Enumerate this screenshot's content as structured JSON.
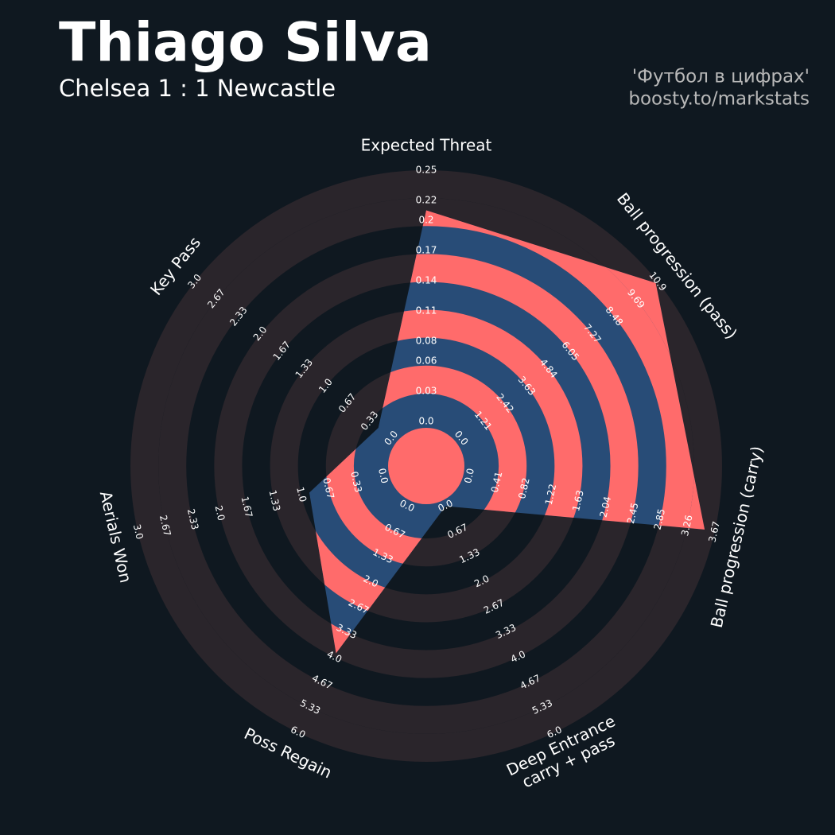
{
  "title": "Thiago Silva",
  "subtitle": "Chelsea 1 : 1 Newcastle",
  "credits": [
    "'Футбол в цифрах'",
    "boosty.to/markstats"
  ],
  "chart_data": {
    "type": "radar",
    "params": [
      "Expected Threat",
      "Ball progression (pass)",
      "Ball progression (carry)",
      "Deep Entrance\ncarry + pass",
      "Poss Regain",
      "Aerials Won",
      "Key Pass"
    ],
    "values": [
      0.21,
      10.8,
      3.52,
      0,
      3.9,
      0.9,
      0.2
    ],
    "color": "#284c77",
    "stripe_color": "#ff6b6b",
    "ring_color": "#2a252b",
    "ranges": [
      {
        "lim": [
          0,
          0.25
        ],
        "ticks": [
          {
            "value": 0,
            "label": "0.0"
          },
          0.03,
          0.06,
          0.08,
          0.11,
          0.14,
          0.17,
          0.2,
          0.22,
          0.25
        ]
      },
      {
        "lim": [
          0,
          10.9
        ],
        "ticks": [
          {
            "value": 0,
            "label": "0.0"
          },
          1.21,
          2.42,
          3.63,
          4.84,
          6.05,
          7.27,
          8.48,
          9.69,
          10.9
        ]
      },
      {
        "lim": [
          0,
          3.67
        ],
        "ticks": [
          {
            "value": 0,
            "label": "0.0"
          },
          0.41,
          0.82,
          1.22,
          1.63,
          2.04,
          2.45,
          2.85,
          3.26,
          3.67
        ]
      },
      {
        "lim": [
          0,
          6
        ],
        "ticks": [
          {
            "value": 0,
            "label": "0.0"
          },
          0.67,
          1.33,
          {
            "value": 2,
            "label": "2.0"
          },
          2.67,
          3.33,
          {
            "value": 4,
            "label": "4.0"
          },
          4.67,
          5.33,
          {
            "value": 6,
            "label": "6.0"
          }
        ]
      },
      {
        "lim": [
          0,
          6
        ],
        "ticks": [
          {
            "value": 0,
            "label": "0.0"
          },
          0.67,
          1.33,
          {
            "value": 2,
            "label": "2.0"
          },
          2.67,
          3.33,
          {
            "value": 4,
            "label": "4.0"
          },
          4.67,
          5.33,
          {
            "value": 6,
            "label": "6.0"
          }
        ]
      },
      {
        "lim": [
          0,
          3
        ],
        "ticks": [
          {
            "value": 0,
            "label": "0.0"
          },
          0.33,
          0.67,
          {
            "value": 1,
            "label": "1.0"
          },
          1.33,
          1.67,
          {
            "value": 2,
            "label": "2.0"
          },
          2.33,
          2.67,
          {
            "value": 3,
            "label": "3.0"
          }
        ]
      },
      {
        "lim": [
          0,
          3
        ],
        "ticks": [
          {
            "value": 0,
            "label": "0.0"
          },
          0.33,
          0.67,
          {
            "value": 1,
            "label": "1.0"
          },
          1.33,
          1.67,
          {
            "value": 2,
            "label": "2.0"
          },
          2.33,
          2.67,
          {
            "value": 3,
            "label": "3.0"
          }
        ]
      }
    ]
  }
}
